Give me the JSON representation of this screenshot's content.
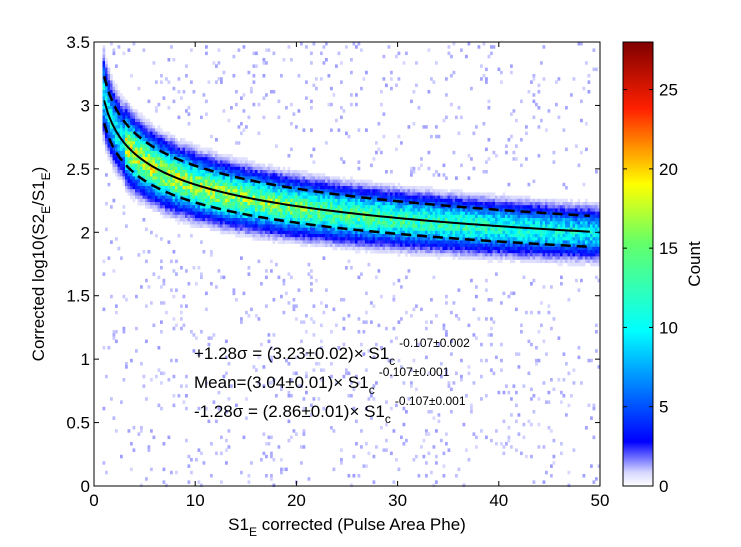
{
  "chart_data": {
    "type": "heatmap",
    "title": "",
    "xlabel": {
      "main": "S1",
      "sub": "E",
      "rest": " corrected (Pulse Area Phe)"
    },
    "ylabel": {
      "p1": "Corrected log10(S2",
      "s1": "E",
      "p2": "/S1",
      "s2": "E",
      "p3": ")"
    },
    "xlim": [
      0,
      50
    ],
    "ylim": [
      0,
      3.5
    ],
    "x_ticks": [
      "0",
      "10",
      "20",
      "30",
      "40",
      "50"
    ],
    "y_ticks": [
      "0",
      "0.5",
      "1",
      "1.5",
      "2",
      "2.5",
      "3",
      "3.5"
    ],
    "colorbar": {
      "label": "Count",
      "range": [
        0,
        28
      ],
      "ticks": [
        "0",
        "5",
        "10",
        "15",
        "20",
        "25"
      ]
    },
    "band_fits": {
      "plus": {
        "coef": 3.23,
        "exp": -0.107
      },
      "mean": {
        "coef": 3.04,
        "exp": -0.107
      },
      "minus": {
        "coef": 2.86,
        "exp": -0.107
      },
      "x_range": [
        1,
        49
      ]
    },
    "annotations": {
      "plus": {
        "text": "+1.28σ = (3.23±0.02)× S1",
        "sub": "c",
        "sup": "-0.107±0.002"
      },
      "mean": {
        "text": "Mean=(3.04±0.01)× S1",
        "sub": "c",
        "sup": "-0.107±0.001"
      },
      "minus": {
        "text": "-1.28σ = (2.86±0.01)× S1",
        "sub": "c",
        "sup": "-0.107±0.001"
      }
    }
  }
}
